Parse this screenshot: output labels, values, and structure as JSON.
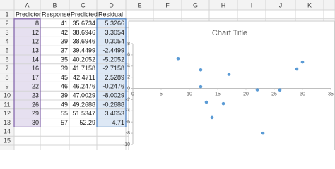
{
  "sheet": {
    "columns": [
      "A",
      "B",
      "C",
      "D",
      "E",
      "F",
      "G",
      "H",
      "I",
      "J",
      "K"
    ],
    "row_numbers": [
      1,
      2,
      3,
      4,
      5,
      6,
      7,
      8,
      9,
      10,
      11,
      12,
      13,
      14,
      15
    ],
    "rows": [
      [
        "Predictor",
        "Response",
        "Predicted",
        "Residual"
      ],
      [
        8,
        41,
        35.6734,
        5.3266
      ],
      [
        12,
        42,
        38.6946,
        3.3054
      ],
      [
        12,
        39,
        38.6946,
        0.3054
      ],
      [
        13,
        37,
        39.4499,
        -2.4499
      ],
      [
        14,
        35,
        40.2052,
        -5.2052
      ],
      [
        16,
        39,
        41.7158,
        -2.7158
      ],
      [
        17,
        45,
        42.4711,
        2.5289
      ],
      [
        22,
        46,
        46.2476,
        -0.2476
      ],
      [
        23,
        39,
        47.0029,
        -8.0029
      ],
      [
        26,
        49,
        49.2688,
        -0.2688
      ],
      [
        29,
        55,
        51.5347,
        3.4653
      ],
      [
        30,
        57,
        52.29,
        4.71
      ]
    ]
  },
  "chart_data": {
    "type": "scatter",
    "title": "Chart Title",
    "x": [
      8,
      12,
      12,
      13,
      14,
      16,
      17,
      22,
      23,
      26,
      29,
      30
    ],
    "values": [
      5.3266,
      3.3054,
      0.3054,
      -2.4499,
      -5.2052,
      -2.7158,
      2.5289,
      -0.2476,
      -8.0029,
      -0.2688,
      3.4653,
      4.71
    ],
    "color": "#5b9bd5",
    "xlim": [
      0,
      35
    ],
    "xticks": [
      0,
      5,
      10,
      15,
      20,
      25,
      30,
      35
    ],
    "ylim": [
      -10,
      8
    ],
    "yticks": [
      -10,
      -8,
      -6,
      -4,
      -2,
      0,
      2,
      4,
      6,
      8
    ],
    "grid": false
  }
}
